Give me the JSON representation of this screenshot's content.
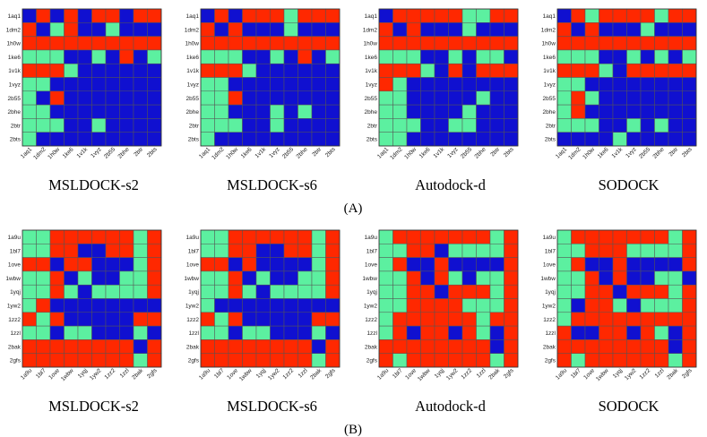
{
  "figure": {
    "panel_labels": [
      "(A)",
      "(B)"
    ]
  },
  "colors": {
    "0": "#1010d0",
    "1": "#5cf0a0",
    "2": "#ff2800",
    "grid": "#555555"
  },
  "chart_data": [
    {
      "type": "heatmap",
      "title": "MSLDOCK-s2",
      "group": "(A)",
      "x_labels": [
        "1aq1",
        "1dm2",
        "1h0w",
        "1ke6",
        "1v1k",
        "1vyz",
        "2b55",
        "2bhe",
        "2btr",
        "2bts"
      ],
      "y_labels": [
        "1aq1",
        "1dm2",
        "1h0w",
        "1ke6",
        "1v1k",
        "1vyz",
        "2b55",
        "2bhe",
        "2btr",
        "2bts"
      ],
      "value_legend": {
        "0": "blue",
        "1": "green",
        "2": "red"
      },
      "values": [
        [
          0,
          2,
          0,
          2,
          0,
          2,
          2,
          0,
          2,
          2
        ],
        [
          2,
          0,
          1,
          2,
          0,
          0,
          1,
          0,
          0,
          0
        ],
        [
          2,
          2,
          2,
          2,
          2,
          2,
          2,
          2,
          2,
          2
        ],
        [
          1,
          1,
          1,
          0,
          0,
          1,
          0,
          2,
          0,
          1
        ],
        [
          2,
          2,
          2,
          1,
          0,
          0,
          0,
          0,
          0,
          0
        ],
        [
          1,
          1,
          0,
          0,
          0,
          0,
          0,
          0,
          0,
          0
        ],
        [
          1,
          0,
          2,
          0,
          0,
          0,
          0,
          0,
          0,
          0
        ],
        [
          1,
          1,
          0,
          0,
          0,
          0,
          0,
          0,
          0,
          0
        ],
        [
          1,
          1,
          1,
          0,
          0,
          1,
          0,
          0,
          0,
          0
        ],
        [
          1,
          0,
          0,
          0,
          0,
          0,
          0,
          0,
          0,
          0
        ]
      ]
    },
    {
      "type": "heatmap",
      "title": "MSLDOCK-s6",
      "group": "(A)",
      "x_labels": [
        "1aq1",
        "1dm2",
        "1h0w",
        "1ke6",
        "1v1k",
        "1vyz",
        "2b55",
        "2bhe",
        "2btr",
        "2bts"
      ],
      "y_labels": [
        "1aq1",
        "1dm2",
        "1h0w",
        "1ke6",
        "1v1k",
        "1vyz",
        "2b55",
        "2bhe",
        "2btr",
        "2bts"
      ],
      "value_legend": {
        "0": "blue",
        "1": "green",
        "2": "red"
      },
      "values": [
        [
          0,
          2,
          0,
          2,
          2,
          2,
          1,
          2,
          2,
          2
        ],
        [
          2,
          0,
          2,
          0,
          0,
          0,
          1,
          0,
          0,
          0
        ],
        [
          2,
          2,
          2,
          2,
          2,
          2,
          2,
          2,
          2,
          2
        ],
        [
          1,
          1,
          1,
          0,
          0,
          1,
          0,
          2,
          0,
          1
        ],
        [
          2,
          2,
          2,
          1,
          0,
          0,
          0,
          0,
          0,
          0
        ],
        [
          1,
          1,
          0,
          0,
          0,
          0,
          0,
          0,
          0,
          0
        ],
        [
          1,
          1,
          2,
          0,
          0,
          0,
          0,
          0,
          0,
          0
        ],
        [
          1,
          1,
          0,
          0,
          0,
          1,
          0,
          1,
          0,
          0
        ],
        [
          1,
          1,
          1,
          0,
          0,
          1,
          0,
          0,
          0,
          0
        ],
        [
          1,
          0,
          0,
          0,
          0,
          0,
          0,
          0,
          0,
          0
        ]
      ]
    },
    {
      "type": "heatmap",
      "title": "Autodock-d",
      "group": "(A)",
      "x_labels": [
        "1aq1",
        "1dm2",
        "1h0w",
        "1ke6",
        "1v1k",
        "1vyz",
        "2b55",
        "2bhe",
        "2btr",
        "2bts"
      ],
      "y_labels": [
        "1aq1",
        "1dm2",
        "1h0w",
        "1ke6",
        "1v1k",
        "1vyz",
        "2b55",
        "2bhe",
        "2btr",
        "2bts"
      ],
      "value_legend": {
        "0": "blue",
        "1": "green",
        "2": "red"
      },
      "values": [
        [
          0,
          2,
          2,
          2,
          2,
          2,
          1,
          1,
          2,
          2
        ],
        [
          2,
          0,
          2,
          0,
          0,
          0,
          1,
          0,
          0,
          0
        ],
        [
          2,
          2,
          2,
          2,
          2,
          2,
          2,
          2,
          2,
          2
        ],
        [
          1,
          1,
          1,
          0,
          0,
          1,
          0,
          1,
          1,
          0
        ],
        [
          2,
          2,
          2,
          1,
          0,
          2,
          0,
          2,
          2,
          2
        ],
        [
          2,
          1,
          0,
          0,
          0,
          0,
          0,
          0,
          0,
          0
        ],
        [
          1,
          1,
          0,
          0,
          0,
          0,
          0,
          1,
          0,
          0
        ],
        [
          1,
          1,
          0,
          0,
          0,
          0,
          1,
          0,
          0,
          0
        ],
        [
          1,
          1,
          1,
          0,
          0,
          1,
          1,
          0,
          0,
          0
        ],
        [
          1,
          1,
          0,
          0,
          0,
          0,
          0,
          0,
          0,
          0
        ]
      ]
    },
    {
      "type": "heatmap",
      "title": "SODOCK",
      "group": "(A)",
      "x_labels": [
        "1aq1",
        "1dm2",
        "1h0w",
        "1ke6",
        "1v1k",
        "1vyz",
        "2b55",
        "2bhe",
        "2btr",
        "2bts"
      ],
      "y_labels": [
        "1aq1",
        "1dm2",
        "1h0w",
        "1ke6",
        "1v1k",
        "1vyz",
        "2b55",
        "2bhe",
        "2btr",
        "2bts"
      ],
      "value_legend": {
        "0": "blue",
        "1": "green",
        "2": "red"
      },
      "values": [
        [
          0,
          2,
          1,
          2,
          2,
          2,
          2,
          1,
          2,
          2
        ],
        [
          2,
          0,
          2,
          0,
          0,
          0,
          1,
          0,
          0,
          0
        ],
        [
          2,
          2,
          2,
          2,
          2,
          2,
          2,
          2,
          2,
          2
        ],
        [
          1,
          1,
          1,
          0,
          0,
          1,
          0,
          1,
          0,
          1
        ],
        [
          2,
          2,
          2,
          1,
          0,
          2,
          2,
          2,
          2,
          2
        ],
        [
          1,
          1,
          0,
          0,
          0,
          0,
          0,
          0,
          0,
          0
        ],
        [
          1,
          2,
          1,
          0,
          0,
          0,
          0,
          0,
          0,
          0
        ],
        [
          1,
          2,
          0,
          0,
          0,
          0,
          0,
          0,
          0,
          0
        ],
        [
          1,
          1,
          1,
          0,
          0,
          1,
          0,
          1,
          0,
          0
        ],
        [
          0,
          0,
          0,
          0,
          1,
          0,
          0,
          0,
          0,
          0
        ]
      ]
    },
    {
      "type": "heatmap",
      "title": "MSLDOCK-s2",
      "group": "(B)",
      "x_labels": [
        "1a9u",
        "1bl7",
        "1ove",
        "1wbw",
        "1yqj",
        "1yw2",
        "1zz2",
        "1zzl",
        "2bak",
        "2gfs"
      ],
      "y_labels": [
        "1a9u",
        "1bl7",
        "1ove",
        "1wbw",
        "1yqj",
        "1yw2",
        "1zz2",
        "1zzl",
        "2bak",
        "2gfs"
      ],
      "value_legend": {
        "0": "blue",
        "1": "green",
        "2": "red"
      },
      "values": [
        [
          1,
          1,
          2,
          2,
          2,
          2,
          2,
          2,
          1,
          2
        ],
        [
          1,
          1,
          2,
          2,
          0,
          0,
          2,
          2,
          1,
          2
        ],
        [
          2,
          2,
          0,
          2,
          2,
          0,
          0,
          0,
          1,
          2
        ],
        [
          1,
          1,
          2,
          0,
          1,
          0,
          0,
          1,
          1,
          2
        ],
        [
          1,
          1,
          2,
          1,
          0,
          1,
          1,
          1,
          1,
          2
        ],
        [
          1,
          2,
          0,
          0,
          0,
          0,
          0,
          0,
          0,
          0
        ],
        [
          2,
          1,
          2,
          0,
          0,
          0,
          0,
          0,
          2,
          2
        ],
        [
          1,
          1,
          0,
          1,
          1,
          0,
          0,
          0,
          1,
          0
        ],
        [
          2,
          2,
          2,
          2,
          2,
          2,
          2,
          2,
          0,
          2
        ],
        [
          2,
          2,
          2,
          2,
          2,
          2,
          2,
          2,
          1,
          2
        ]
      ]
    },
    {
      "type": "heatmap",
      "title": "MSLDOCK-s6",
      "group": "(B)",
      "x_labels": [
        "1a9u",
        "1bl7",
        "1ove",
        "1wbw",
        "1yqj",
        "1yw2",
        "1zz2",
        "1zzl",
        "2bak",
        "2gfs"
      ],
      "y_labels": [
        "1a9u",
        "1bl7",
        "1ove",
        "1wbw",
        "1yqj",
        "1yw2",
        "1zz2",
        "1zzl",
        "2bak",
        "2gfs"
      ],
      "value_legend": {
        "0": "blue",
        "1": "green",
        "2": "red"
      },
      "values": [
        [
          1,
          1,
          2,
          2,
          2,
          2,
          2,
          2,
          1,
          2
        ],
        [
          1,
          1,
          2,
          2,
          0,
          0,
          2,
          2,
          1,
          2
        ],
        [
          2,
          2,
          0,
          2,
          0,
          0,
          0,
          0,
          1,
          2
        ],
        [
          1,
          1,
          2,
          0,
          1,
          0,
          0,
          1,
          1,
          2
        ],
        [
          1,
          1,
          2,
          1,
          0,
          1,
          1,
          1,
          1,
          2
        ],
        [
          1,
          0,
          0,
          0,
          0,
          0,
          0,
          0,
          0,
          0
        ],
        [
          2,
          1,
          2,
          0,
          0,
          0,
          0,
          0,
          2,
          2
        ],
        [
          1,
          1,
          0,
          1,
          1,
          0,
          0,
          0,
          1,
          0
        ],
        [
          2,
          2,
          2,
          2,
          2,
          2,
          2,
          2,
          0,
          2
        ],
        [
          2,
          2,
          2,
          2,
          2,
          2,
          2,
          2,
          1,
          2
        ]
      ]
    },
    {
      "type": "heatmap",
      "title": "Autodock-d",
      "group": "(B)",
      "x_labels": [
        "1a9u",
        "1bl7",
        "1ove",
        "1wbw",
        "1yqj",
        "1yw2",
        "1zz2",
        "1zzl",
        "2bak",
        "2gfs"
      ],
      "y_labels": [
        "1a9u",
        "1bl7",
        "1ove",
        "1wbw",
        "1yqj",
        "1yw2",
        "1zz2",
        "1zzl",
        "2bak",
        "2gfs"
      ],
      "value_legend": {
        "0": "blue",
        "1": "green",
        "2": "red"
      },
      "values": [
        [
          1,
          2,
          2,
          2,
          2,
          2,
          2,
          2,
          1,
          2
        ],
        [
          1,
          1,
          2,
          2,
          0,
          1,
          1,
          1,
          1,
          2
        ],
        [
          1,
          2,
          0,
          0,
          2,
          0,
          0,
          0,
          0,
          2
        ],
        [
          1,
          1,
          2,
          0,
          2,
          1,
          0,
          1,
          1,
          2
        ],
        [
          1,
          1,
          2,
          2,
          0,
          2,
          2,
          2,
          1,
          2
        ],
        [
          1,
          1,
          2,
          2,
          2,
          2,
          1,
          1,
          1,
          2
        ],
        [
          1,
          2,
          2,
          2,
          2,
          2,
          2,
          1,
          2,
          2
        ],
        [
          1,
          2,
          0,
          2,
          2,
          0,
          2,
          1,
          0,
          2
        ],
        [
          2,
          2,
          2,
          2,
          2,
          2,
          2,
          2,
          0,
          2
        ],
        [
          2,
          1,
          2,
          2,
          2,
          2,
          2,
          2,
          1,
          2
        ]
      ]
    },
    {
      "type": "heatmap",
      "title": "SODOCK",
      "group": "(B)",
      "x_labels": [
        "1a9u",
        "1bl7",
        "1ove",
        "1wbw",
        "1yqj",
        "1yw2",
        "1zz2",
        "1zzl",
        "2bak",
        "2gfs"
      ],
      "y_labels": [
        "1a9u",
        "1bl7",
        "1ove",
        "1wbw",
        "1yqj",
        "1yw2",
        "1zz2",
        "1zzl",
        "2bak",
        "2gfs"
      ],
      "value_legend": {
        "0": "blue",
        "1": "green",
        "2": "red"
      },
      "values": [
        [
          1,
          2,
          2,
          2,
          2,
          2,
          2,
          2,
          1,
          2
        ],
        [
          1,
          1,
          2,
          2,
          2,
          1,
          1,
          1,
          1,
          2
        ],
        [
          1,
          2,
          0,
          0,
          2,
          0,
          0,
          0,
          0,
          2
        ],
        [
          1,
          1,
          2,
          0,
          2,
          0,
          0,
          1,
          1,
          0
        ],
        [
          1,
          1,
          2,
          2,
          0,
          2,
          2,
          2,
          1,
          2
        ],
        [
          1,
          0,
          2,
          2,
          1,
          0,
          1,
          1,
          1,
          2
        ],
        [
          1,
          2,
          2,
          2,
          2,
          2,
          2,
          2,
          2,
          2
        ],
        [
          2,
          0,
          0,
          2,
          2,
          0,
          2,
          1,
          0,
          2
        ],
        [
          2,
          2,
          2,
          2,
          2,
          2,
          2,
          2,
          0,
          2
        ],
        [
          2,
          1,
          2,
          2,
          2,
          2,
          2,
          2,
          1,
          2
        ]
      ]
    }
  ]
}
